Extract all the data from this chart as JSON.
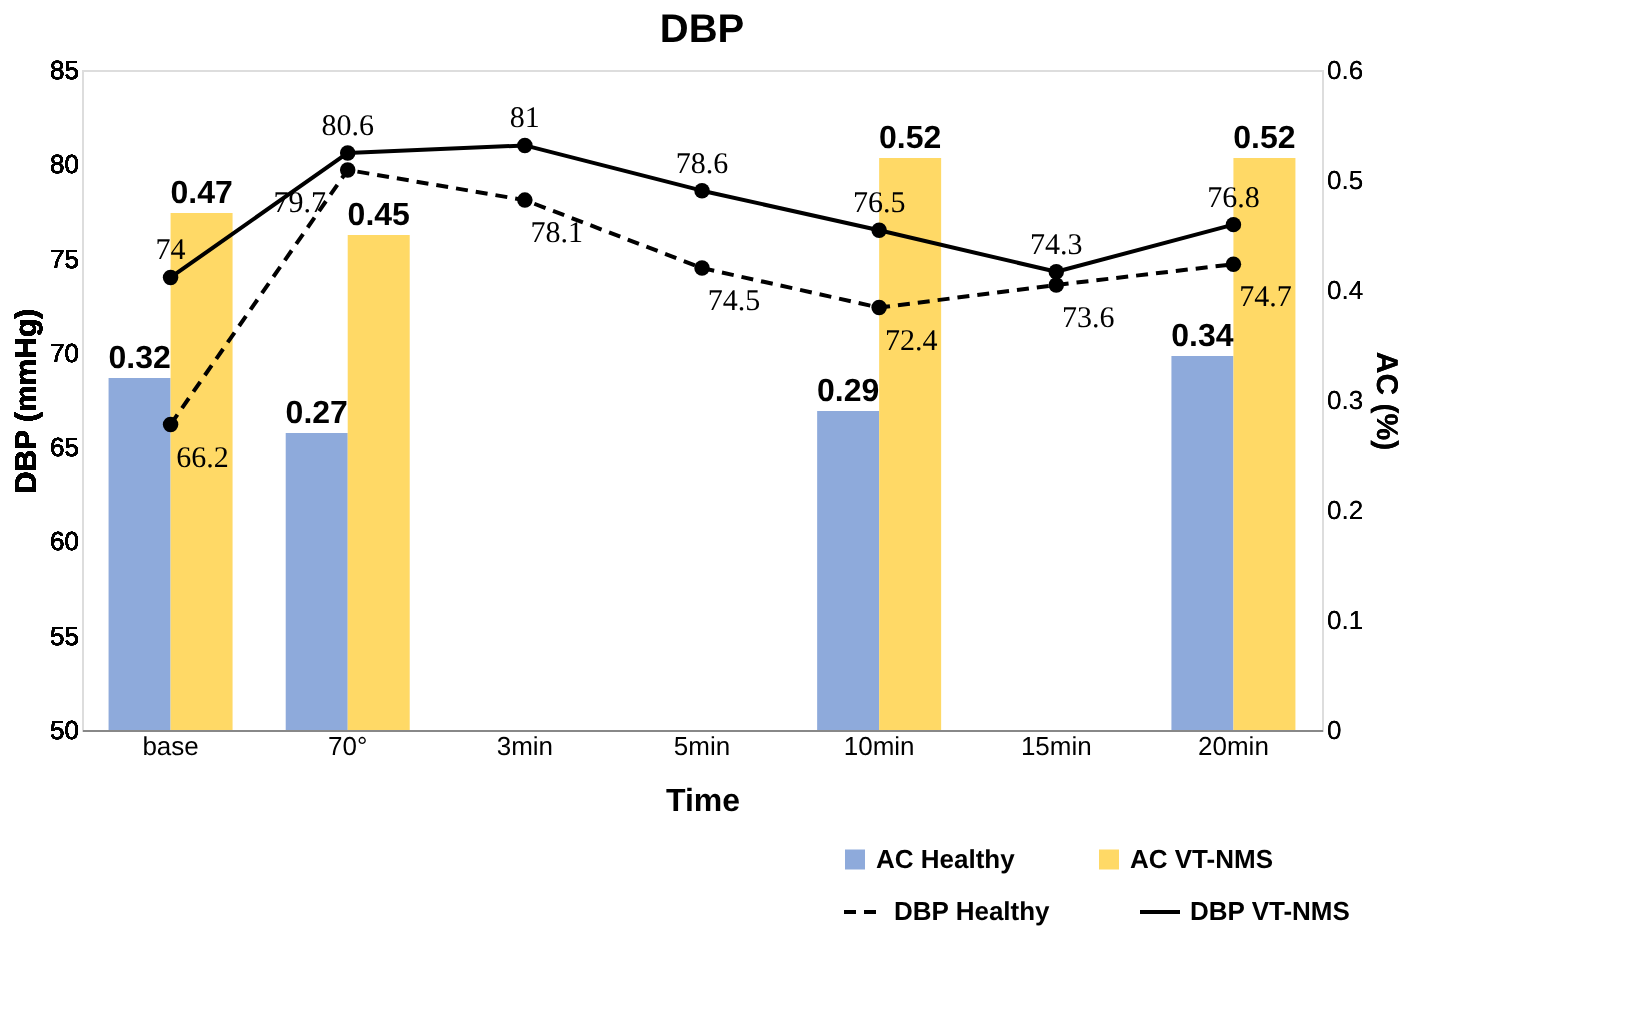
{
  "chart_data": {
    "type": "bar",
    "title": "DBP",
    "xlabel": "Time",
    "ylabel": "DBP (mmHg)",
    "y2label": "AC (%)",
    "categories": [
      "base",
      "70°",
      "3min",
      "5min",
      "10min",
      "15min",
      "20min"
    ],
    "series": [
      {
        "name": "AC Healthy",
        "axis": "y2",
        "color": "#8eaadb",
        "values": [
          0.32,
          0.27,
          null,
          null,
          0.29,
          null,
          0.34
        ]
      },
      {
        "name": "AC VT-NMS",
        "axis": "y2",
        "color": "#ffd966",
        "values": [
          0.47,
          0.45,
          null,
          null,
          0.52,
          null,
          0.52
        ]
      },
      {
        "name": "DBP Healthy",
        "type": "line",
        "color": "#000000",
        "line_style": "dashed",
        "values": [
          66.2,
          79.7,
          78.1,
          74.5,
          72.4,
          73.6,
          74.7
        ]
      },
      {
        "name": "DBP VT-NMS",
        "type": "line",
        "color": "#000000",
        "line_style": "solid",
        "values": [
          74,
          80.6,
          81,
          78.6,
          76.5,
          74.3,
          76.8
        ]
      }
    ],
    "ylim": [
      50,
      85
    ],
    "yticks": [
      50,
      55,
      60,
      65,
      70,
      75,
      80,
      85
    ],
    "y2lim": [
      0,
      0.6
    ],
    "y2ticks": [
      {
        "value": 0,
        "label": "0"
      },
      0.1,
      0.2,
      0.3,
      0.4,
      0.5,
      0.6
    ],
    "data_labels": true,
    "marker": "circle",
    "grid": false,
    "legend": "bottom right"
  }
}
